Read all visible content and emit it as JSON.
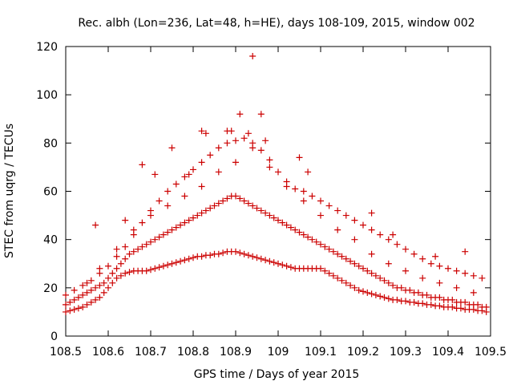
{
  "chart_data": {
    "type": "scatter",
    "title": "Rec. albh (Lon=236, Lat=48, h=HE), days 108-109, 2015, window 002",
    "xlabel": "GPS time / Days of year 2015",
    "ylabel": "STEC from uqrg / TECUs",
    "xlim": [
      108.5,
      109.5
    ],
    "ylim": [
      0,
      120
    ],
    "xticks": [
      "108.5",
      "108.6",
      "108.7",
      "108.8",
      "108.9",
      "109",
      "109.1",
      "109.2",
      "109.3",
      "109.4",
      "109.5"
    ],
    "yticks": [
      "0",
      "20",
      "40",
      "60",
      "80",
      "100",
      "120"
    ],
    "grid": false,
    "legend": "none",
    "marker": "plus",
    "color": "#cc0000",
    "series": [
      {
        "x": [
          108.5,
          108.51,
          108.52,
          108.53,
          108.54,
          108.55,
          108.56,
          108.57,
          108.58,
          108.59,
          108.6,
          108.61,
          108.62,
          108.63,
          108.64,
          108.65,
          108.66,
          108.67,
          108.68,
          108.69,
          108.7,
          108.71,
          108.72,
          108.73,
          108.74,
          108.75,
          108.76,
          108.77,
          108.78,
          108.79,
          108.8,
          108.81,
          108.82,
          108.83,
          108.84,
          108.85,
          108.86,
          108.87,
          108.88,
          108.89,
          108.9,
          108.91,
          108.92,
          108.93,
          108.94,
          108.95,
          108.96,
          108.97,
          108.98,
          108.99,
          109.0,
          109.01,
          109.02,
          109.03,
          109.04,
          109.05,
          109.06,
          109.07,
          109.08,
          109.09,
          109.1,
          109.11,
          109.12,
          109.13,
          109.14,
          109.15,
          109.16,
          109.17,
          109.18,
          109.19,
          109.2,
          109.21,
          109.22,
          109.23,
          109.24,
          109.25,
          109.26,
          109.27,
          109.28,
          109.29,
          109.3,
          109.31,
          109.32,
          109.33,
          109.34,
          109.35,
          109.36,
          109.37,
          109.38,
          109.39,
          109.4,
          109.41,
          109.42,
          109.43,
          109.44,
          109.45,
          109.46,
          109.47,
          109.48,
          109.49
        ],
        "y": [
          10,
          10.5,
          11,
          11.5,
          12,
          13,
          14,
          15,
          16,
          18,
          20,
          22,
          24,
          25,
          26,
          26.5,
          27,
          27,
          27,
          27,
          27.5,
          28,
          28.5,
          29,
          29.5,
          30,
          30.5,
          31,
          31.5,
          32,
          32.5,
          33,
          33,
          33.5,
          33.5,
          34,
          34,
          34.5,
          35,
          35,
          35,
          34.5,
          34,
          33.5,
          33,
          32.5,
          32,
          31.5,
          31,
          30.5,
          30,
          29.5,
          29,
          28.5,
          28,
          28,
          28,
          28,
          28,
          28,
          28,
          27,
          26,
          25,
          24,
          23,
          22,
          21,
          20,
          19,
          18.5,
          18,
          17.5,
          17,
          16.5,
          16,
          15.5,
          15,
          15,
          14.5,
          14.5,
          14,
          14,
          13.5,
          13.5,
          13,
          13,
          12.5,
          12.5,
          12,
          12,
          12,
          11.5,
          11.5,
          11,
          11,
          11,
          10.5,
          10.5,
          10
        ]
      },
      {
        "x": [
          108.5,
          108.51,
          108.52,
          108.53,
          108.54,
          108.55,
          108.56,
          108.57,
          108.58,
          108.59,
          108.6,
          108.61,
          108.62,
          108.63,
          108.64,
          108.65,
          108.66,
          108.67,
          108.68,
          108.69,
          108.7,
          108.71,
          108.72,
          108.73,
          108.74,
          108.75,
          108.76,
          108.77,
          108.78,
          108.79,
          108.8,
          108.81,
          108.82,
          108.83,
          108.84,
          108.85,
          108.86,
          108.87,
          108.88,
          108.89,
          108.9,
          108.91,
          108.92,
          108.93,
          108.94,
          108.95,
          108.96,
          108.97,
          108.98,
          108.99,
          109.0,
          109.01,
          109.02,
          109.03,
          109.04,
          109.05,
          109.06,
          109.07,
          109.08,
          109.09,
          109.1,
          109.11,
          109.12,
          109.13,
          109.14,
          109.15,
          109.16,
          109.17,
          109.18,
          109.19,
          109.2,
          109.21,
          109.22,
          109.23,
          109.24,
          109.25,
          109.26,
          109.27,
          109.28,
          109.29,
          109.3,
          109.31,
          109.32,
          109.33,
          109.34,
          109.35,
          109.36,
          109.37,
          109.38,
          109.39,
          109.4,
          109.41,
          109.42,
          109.43,
          109.44,
          109.45,
          109.46,
          109.47,
          109.48,
          109.49
        ],
        "y": [
          13,
          14,
          15,
          16,
          17,
          18,
          19,
          20,
          21,
          22,
          24,
          26,
          28,
          30,
          32,
          34,
          35,
          36,
          37,
          38,
          39,
          40,
          41,
          42,
          43,
          44,
          45,
          46,
          47,
          48,
          49,
          50,
          51,
          52,
          53,
          54,
          55,
          56,
          57,
          58,
          58,
          57,
          56,
          55,
          54,
          53,
          52,
          51,
          50,
          49,
          48,
          47,
          46,
          45,
          44,
          43,
          42,
          41,
          40,
          39,
          38,
          37,
          36,
          35,
          34,
          33,
          32,
          31,
          30,
          29,
          28,
          27,
          26,
          25,
          24,
          23,
          22,
          21,
          20,
          20,
          19,
          19,
          18,
          18,
          17,
          17,
          16,
          16,
          16,
          15,
          15,
          15,
          14,
          14,
          14,
          13,
          13,
          13,
          12,
          12
        ]
      },
      {
        "x": [
          108.5,
          108.52,
          108.54,
          108.56,
          108.58,
          108.6,
          108.62,
          108.64,
          108.66,
          108.68,
          108.7,
          108.72,
          108.74,
          108.76,
          108.78,
          108.8,
          108.82,
          108.84,
          108.86,
          108.88,
          108.9,
          108.92,
          108.94,
          108.96,
          108.98,
          109.0,
          109.02,
          109.04,
          109.06,
          109.08,
          109.1,
          109.12,
          109.14,
          109.16,
          109.18,
          109.2,
          109.22,
          109.24,
          109.26,
          109.28,
          109.3,
          109.32,
          109.34,
          109.36,
          109.38,
          109.4,
          109.42,
          109.44,
          109.46,
          109.48
        ],
        "y": [
          17,
          19,
          21,
          23,
          26,
          29,
          33,
          37,
          42,
          47,
          52,
          56,
          60,
          63,
          66,
          69,
          72,
          75,
          78,
          80,
          81,
          82,
          80,
          77,
          73,
          68,
          64,
          61,
          60,
          58,
          56,
          54,
          52,
          50,
          48,
          46,
          44,
          42,
          40,
          38,
          36,
          34,
          32,
          30,
          29,
          28,
          27,
          26,
          25,
          24
        ]
      },
      {
        "x": [
          108.55,
          108.58,
          108.62,
          108.66,
          108.7,
          108.74,
          108.78,
          108.82,
          108.86,
          108.9,
          108.94,
          108.98,
          109.02,
          109.06,
          109.1,
          109.14,
          109.18,
          109.22,
          109.26,
          109.3,
          109.34,
          109.38,
          109.42,
          109.46
        ],
        "y": [
          22,
          28,
          36,
          44,
          50,
          54,
          58,
          62,
          68,
          72,
          78,
          70,
          62,
          56,
          50,
          44,
          40,
          34,
          30,
          27,
          24,
          22,
          20,
          18
        ]
      },
      {
        "x": [
          108.57,
          108.64,
          108.68,
          108.71,
          108.75,
          108.79,
          108.82,
          108.83,
          108.88,
          108.89,
          108.91,
          108.93,
          108.94,
          108.96,
          108.97,
          109.05,
          109.07,
          109.22,
          109.27,
          109.37,
          109.44
        ],
        "y": [
          46,
          48,
          71,
          67,
          78,
          67,
          85,
          84,
          85,
          85,
          92,
          84,
          116,
          92,
          81,
          74,
          68,
          51,
          42,
          33,
          35
        ]
      }
    ]
  }
}
